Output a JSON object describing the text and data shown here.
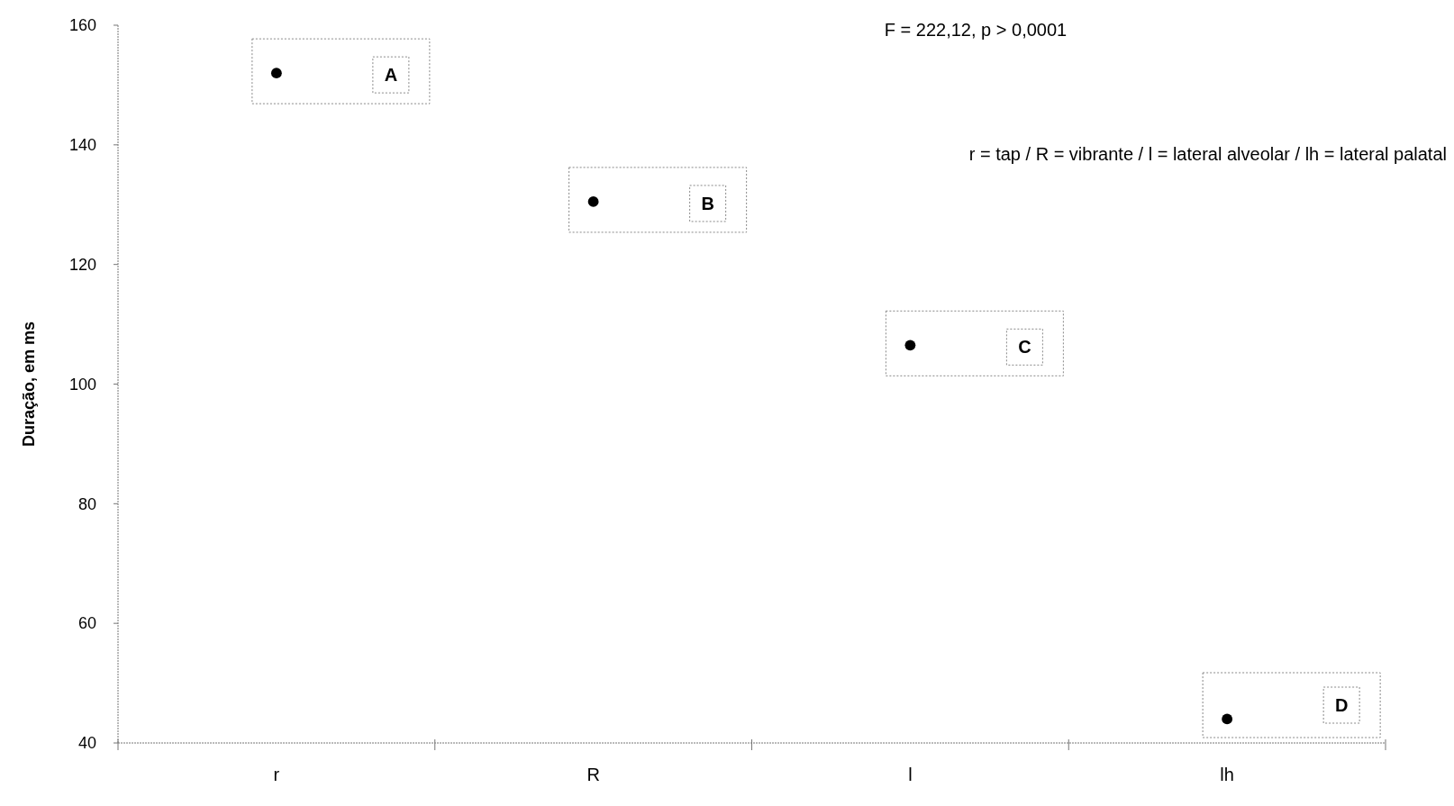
{
  "chart_data": {
    "type": "scatter",
    "ylabel": "Duração, em ms",
    "categories": [
      "r",
      "R",
      "l",
      "lh"
    ],
    "series": [
      {
        "color": "#000000",
        "values": [
          152,
          130.5,
          106.5,
          44
        ]
      }
    ],
    "ylim": [
      40,
      160
    ],
    "yticks": [
      40,
      60,
      80,
      100,
      120,
      140,
      160
    ],
    "grid": false,
    "marker": "circle",
    "annotations": [
      "F = 222,12, p > 0,0001",
      "r = tap / R = vibrante / l = lateral alveolar / lh = lateral palatal",
      "A",
      "B",
      "C",
      "D"
    ]
  }
}
